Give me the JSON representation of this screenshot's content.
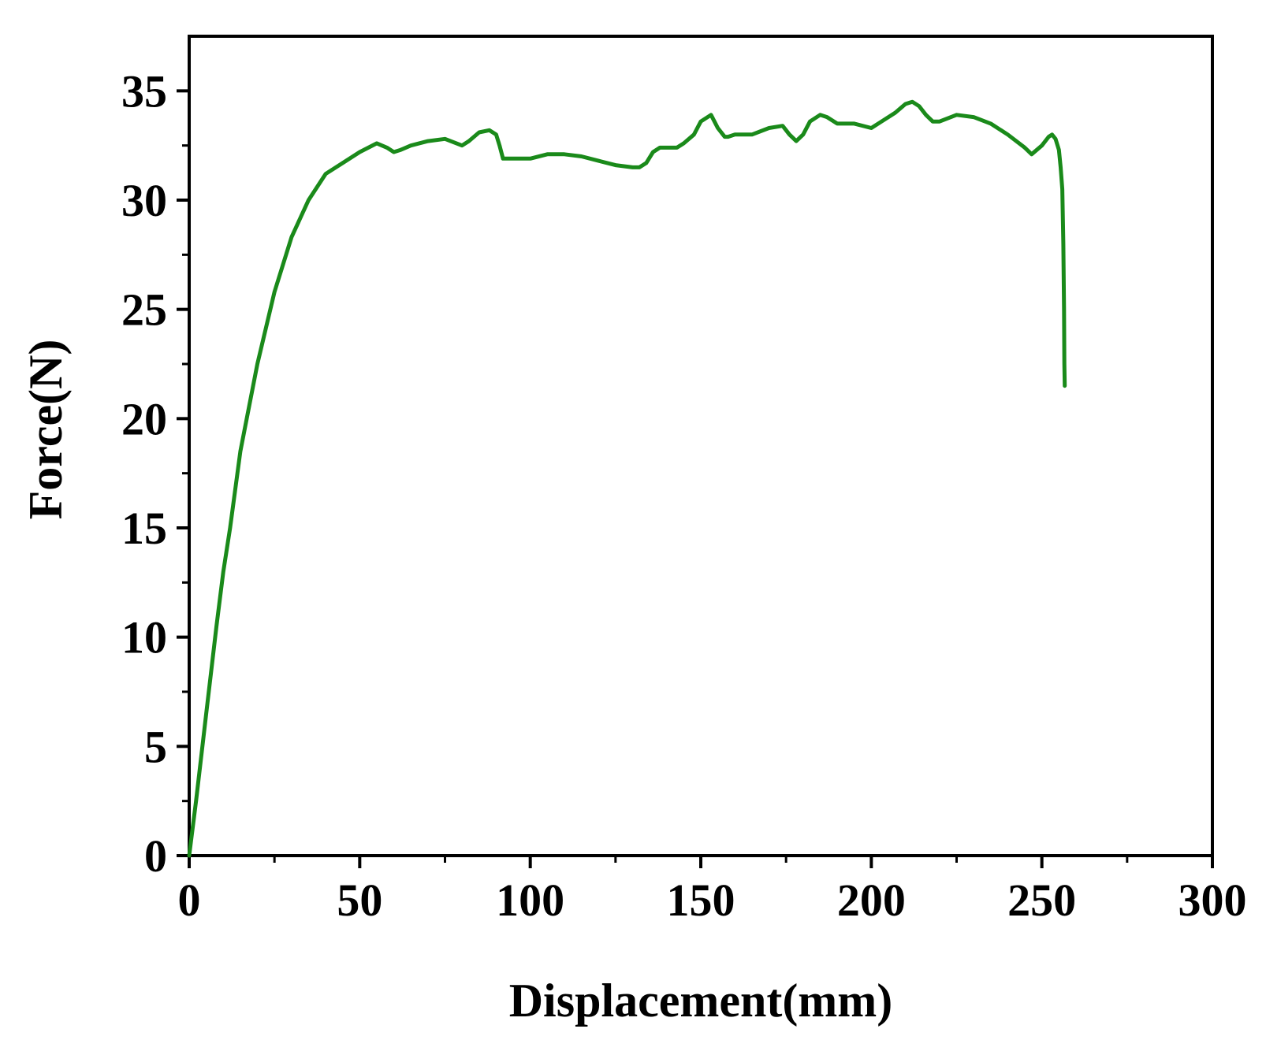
{
  "chart_data": {
    "type": "line",
    "title": "",
    "xlabel": "Displacement(mm)",
    "ylabel": "Force(N)",
    "xlim": [
      0,
      300
    ],
    "ylim": [
      0,
      37.5
    ],
    "x_ticks": [
      0,
      50,
      100,
      150,
      200,
      250,
      300
    ],
    "y_ticks": [
      0,
      5,
      10,
      15,
      20,
      25,
      30,
      35
    ],
    "x_minor_step": 25,
    "y_minor_step": 2.5,
    "grid": false,
    "line_color": "#1a8a1a",
    "series": [
      {
        "x": [
          0,
          2,
          5,
          8,
          10,
          12,
          15,
          20,
          25,
          30,
          35,
          40,
          45,
          50,
          55,
          58,
          60,
          62,
          65,
          70,
          75,
          80,
          82,
          85,
          88,
          90,
          91,
          92,
          93,
          95,
          100,
          105,
          110,
          115,
          120,
          125,
          130,
          132,
          134,
          136,
          138,
          140,
          143,
          145,
          148,
          150,
          153,
          155,
          157,
          158,
          160,
          165,
          170,
          174,
          176,
          178,
          180,
          182,
          185,
          187,
          190,
          195,
          200,
          203,
          207,
          210,
          212,
          214,
          216,
          218,
          220,
          225,
          230,
          235,
          240,
          245,
          247,
          250,
          252,
          253,
          254,
          255,
          255.5,
          256,
          256.3,
          256.5,
          256.6,
          256.7
        ],
        "y": [
          0,
          2.5,
          6.5,
          10.5,
          13,
          15,
          18.5,
          22.5,
          25.8,
          28.3,
          30.0,
          31.2,
          31.7,
          32.2,
          32.6,
          32.4,
          32.2,
          32.3,
          32.5,
          32.7,
          32.8,
          32.5,
          32.7,
          33.1,
          33.2,
          33.0,
          32.5,
          31.9,
          31.9,
          31.9,
          31.9,
          32.1,
          32.1,
          32.0,
          31.8,
          31.6,
          31.5,
          31.5,
          31.7,
          32.2,
          32.4,
          32.4,
          32.4,
          32.6,
          33.0,
          33.6,
          33.9,
          33.3,
          32.9,
          32.9,
          33.0,
          33.0,
          33.3,
          33.4,
          33.0,
          32.7,
          33.0,
          33.6,
          33.9,
          33.8,
          33.5,
          33.5,
          33.3,
          33.6,
          34.0,
          34.4,
          34.5,
          34.3,
          33.9,
          33.6,
          33.6,
          33.9,
          33.8,
          33.5,
          33.0,
          32.4,
          32.1,
          32.5,
          32.9,
          33.0,
          32.8,
          32.3,
          31.5,
          30.5,
          28.0,
          25.0,
          22.5,
          21.5
        ]
      }
    ]
  }
}
